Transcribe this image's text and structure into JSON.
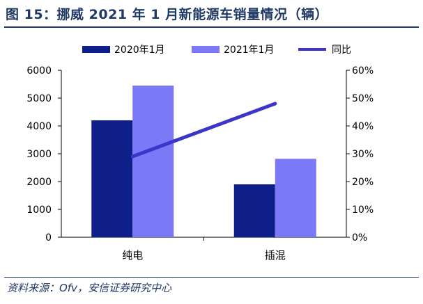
{
  "header": {
    "title": "图 15：挪威 2021 年 1 月新能源车销量情况（辆）"
  },
  "footer": {
    "source": "资料来源：Ofv，安信证券研究中心"
  },
  "chart_data": {
    "type": "bar",
    "categories": [
      "纯电",
      "插混"
    ],
    "series": [
      {
        "name": "2020年1月",
        "kind": "bar",
        "axis": "left",
        "color": "#0e1f8a",
        "values": [
          4200,
          1900
        ]
      },
      {
        "name": "2021年1月",
        "kind": "bar",
        "axis": "left",
        "color": "#7b79f7",
        "values": [
          5450,
          2820
        ]
      },
      {
        "name": "同比",
        "kind": "line",
        "axis": "right",
        "color": "#3b35c9",
        "values": [
          0.29,
          0.48
        ]
      }
    ],
    "y_left": {
      "min": 0,
      "max": 6000,
      "ticks": [
        0,
        1000,
        2000,
        3000,
        4000,
        5000,
        6000
      ]
    },
    "y_right": {
      "min": 0,
      "max": 0.6,
      "ticks": [
        "0%",
        "10%",
        "20%",
        "30%",
        "40%",
        "50%",
        "60%"
      ]
    },
    "legend_position": "top",
    "grid": false
  }
}
